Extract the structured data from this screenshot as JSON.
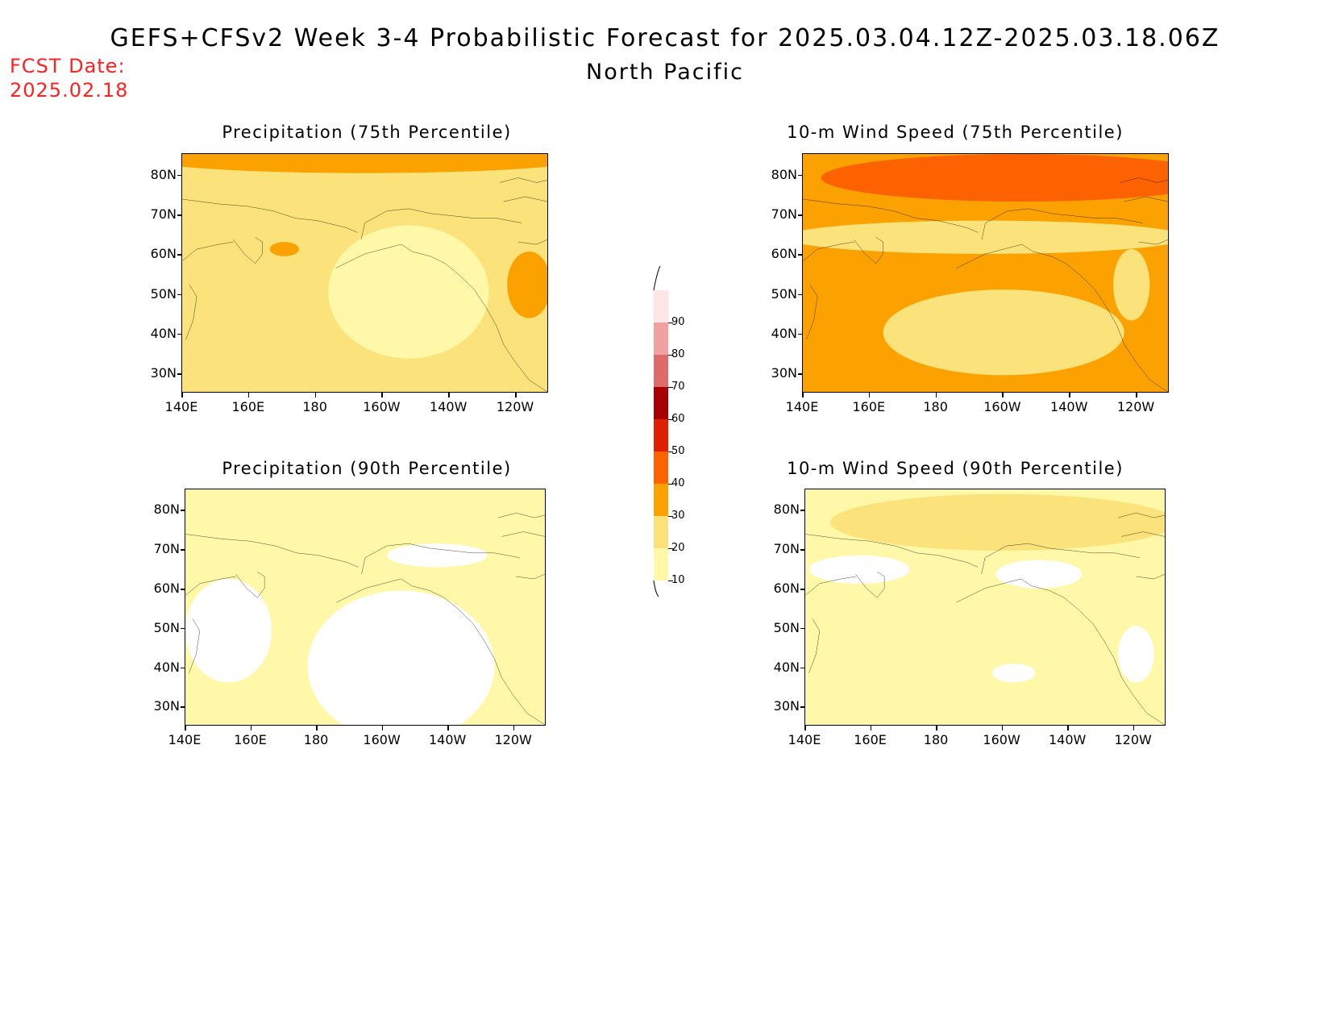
{
  "header": {
    "title": "GEFS+CFSv2 Week 3-4 Probabilistic Forecast for 2025.03.04.12Z-2025.03.18.06Z",
    "subtitle": "North Pacific",
    "fcst_label": "FCST Date:",
    "fcst_value": "2025.02.18"
  },
  "colors": {
    "c10": "#fff8a8",
    "c20": "#fbe27a",
    "c30": "#fba200",
    "c40": "#fc6200",
    "c50": "#e01f00",
    "c60": "#a80000",
    "c70": "#df6a6a",
    "c80": "#f2a1a1",
    "c90": "#ffe6e6",
    "land_outline": "#000000"
  },
  "legend": {
    "ticks": [
      "10",
      "20",
      "30",
      "40",
      "50",
      "60",
      "70",
      "80",
      "90"
    ]
  },
  "axes": {
    "lat_labels": [
      "80N",
      "70N",
      "60N",
      "50N",
      "40N",
      "30N"
    ],
    "lon_labels": [
      "140E",
      "160E",
      "180",
      "160W",
      "140W",
      "120W"
    ]
  },
  "panels": [
    {
      "title": "Precipitation (75th Percentile)",
      "base": "c20",
      "hi": "c30",
      "lo": "c10"
    },
    {
      "title": "10-m Wind Speed (75th Percentile)",
      "base": "c30",
      "hi": "c40",
      "lo": "c20"
    },
    {
      "title": "Precipitation (90th Percentile)",
      "base": "c10",
      "hi": "c20",
      "lo": "white"
    },
    {
      "title": "10-m Wind Speed (90th Percentile)",
      "base": "c10",
      "hi": "c20",
      "lo": "white"
    }
  ]
}
